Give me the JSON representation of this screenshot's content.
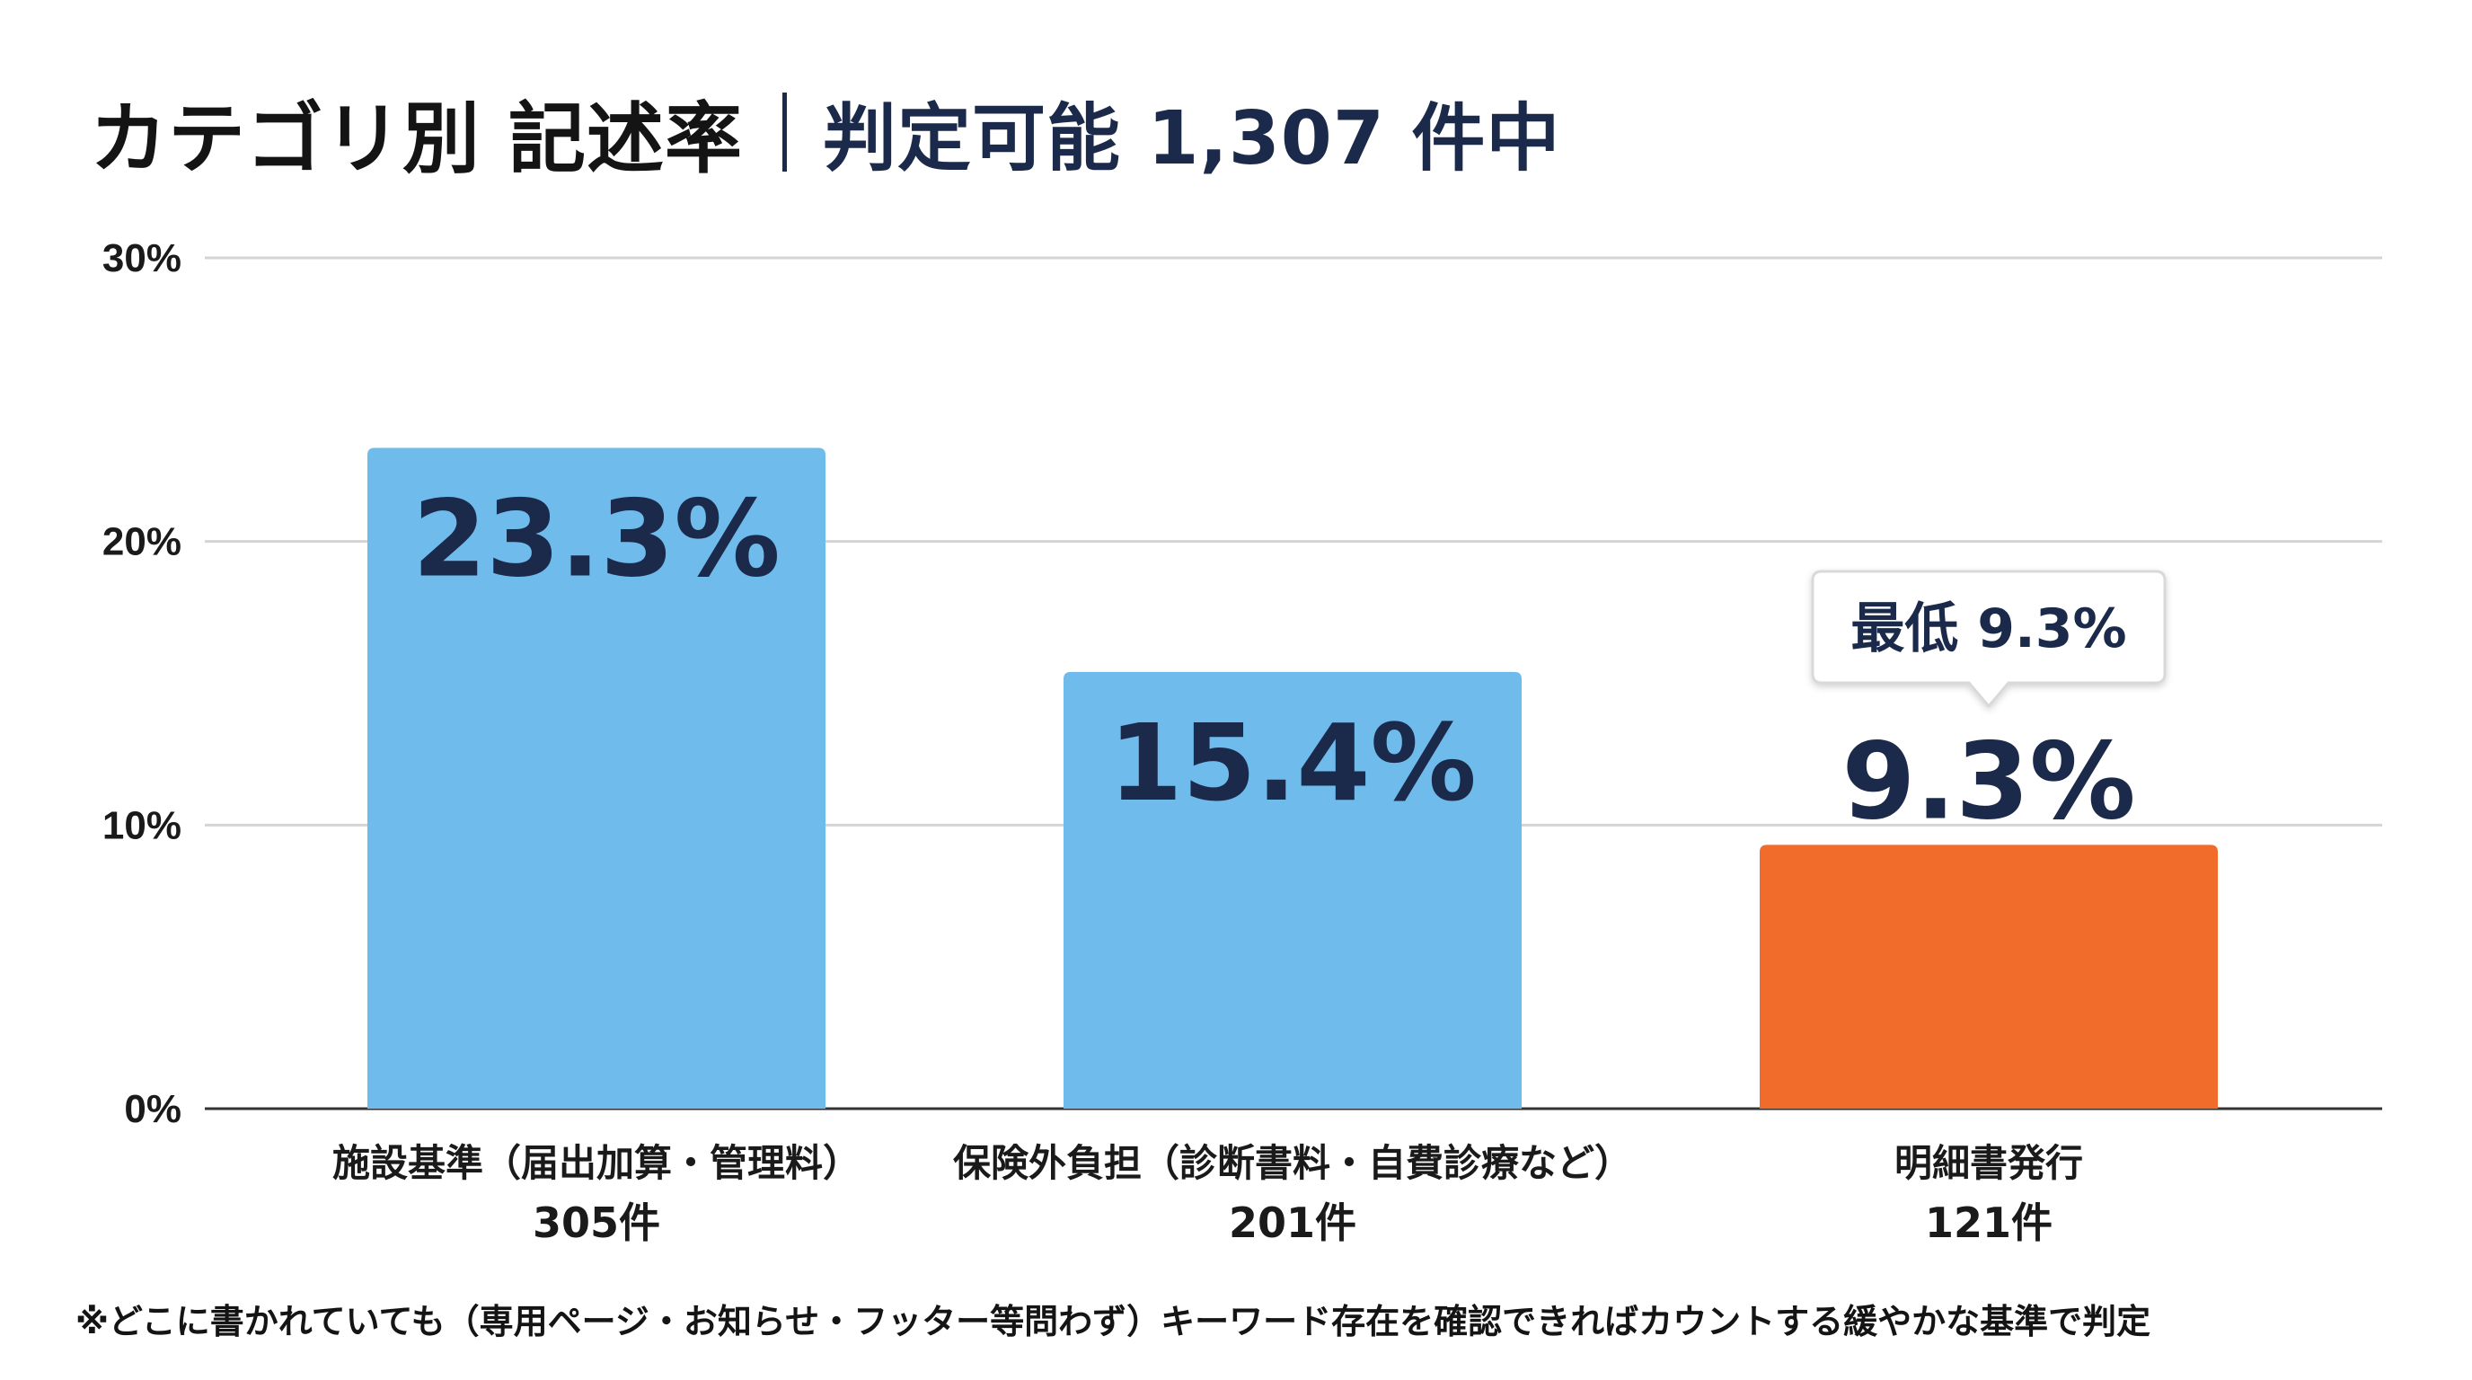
{
  "header": {
    "title": "カテゴリ別 記述率",
    "subtitle": "判定可能 1,307 件中"
  },
  "footnote": "※どこに書かれていても（専用ページ・お知らせ・フッター等問わず）キーワード存在を確認できればカウントする緩やかな基準で判定",
  "colors": {
    "bar_default": "#6fbbec",
    "bar_highlight": "#f16b2a",
    "value_text": "#1b2a4a",
    "grid": "#d4d4d4",
    "axis": "#333333"
  },
  "chart_data": {
    "type": "bar",
    "title": "カテゴリ別 記述率",
    "xlabel": "",
    "ylabel": "",
    "ylim": [
      0,
      30
    ],
    "yticks": [
      0,
      10,
      20,
      30
    ],
    "ytick_labels": [
      "0%",
      "10%",
      "20%",
      "30%"
    ],
    "grid": true,
    "categories": [
      "施設基準（届出加算・管理料）",
      "保険外負担（診断書料・自費診療など）",
      "明細書発行"
    ],
    "values": [
      23.3,
      15.4,
      9.3
    ],
    "value_labels": [
      "23.3%",
      "15.4%",
      "9.3%"
    ],
    "counts": [
      "305件",
      "201件",
      "121件"
    ],
    "highlight_index": 2,
    "annotation": {
      "text": "最低 9.3%",
      "target_index": 2
    }
  }
}
